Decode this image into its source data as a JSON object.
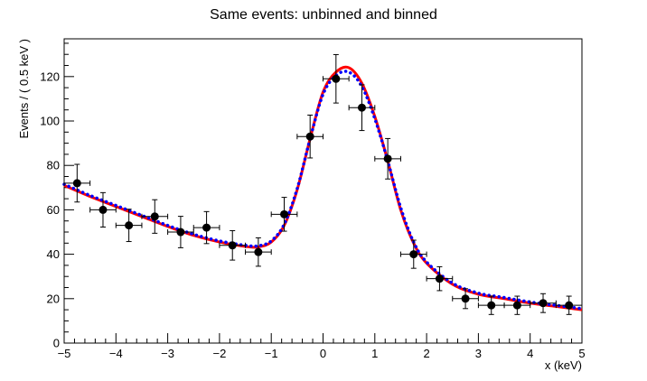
{
  "chart_data": {
    "type": "scatter",
    "title": "Same events: unbinned and binned",
    "xlabel": "x (keV)",
    "ylabel": "Events / ( 0.5 keV )",
    "xlim": [
      -5,
      5
    ],
    "ylim": [
      0,
      137
    ],
    "grid": false,
    "x_ticks": [
      -5,
      -4,
      -3,
      -2,
      -1,
      0,
      1,
      2,
      3,
      4,
      5
    ],
    "x_tick_labels": [
      "−5",
      "−4",
      "−3",
      "−2",
      "−1",
      "0",
      "1",
      "2",
      "3",
      "4",
      "5"
    ],
    "y_ticks": [
      0,
      20,
      40,
      60,
      80,
      100,
      120
    ],
    "y_tick_labels": [
      "0",
      "20",
      "40",
      "60",
      "80",
      "100",
      "120"
    ],
    "points": {
      "x": [
        -4.75,
        -4.25,
        -3.75,
        -3.25,
        -2.75,
        -2.25,
        -1.75,
        -1.25,
        -0.75,
        -0.25,
        0.25,
        0.75,
        1.25,
        1.75,
        2.25,
        2.75,
        3.25,
        3.75,
        4.25,
        4.75
      ],
      "y": [
        72,
        60,
        53,
        57,
        50,
        52,
        44,
        41,
        58,
        93,
        119,
        106,
        83,
        40,
        29,
        20,
        17,
        17,
        18,
        17
      ],
      "xerr": 0.25,
      "color": "#000000"
    },
    "series": [
      {
        "line_style": "solid",
        "color": "#ff0000",
        "x": [
          -5,
          -4.5,
          -4,
          -3.5,
          -3,
          -2.5,
          -2,
          -1.5,
          -1.25,
          -1,
          -0.75,
          -0.5,
          -0.25,
          0,
          0.25,
          0.5,
          0.75,
          1,
          1.25,
          1.5,
          1.75,
          2,
          2.5,
          3,
          3.5,
          4,
          4.5,
          5
        ],
        "y": [
          71,
          66,
          61.5,
          57,
          52.5,
          48.5,
          45.5,
          43.5,
          43.3,
          45.5,
          53,
          69,
          92,
          113,
          122,
          124,
          117,
          102,
          82,
          60,
          45,
          36,
          26.5,
          22,
          20,
          18,
          16.5,
          15
        ]
      },
      {
        "line_style": "dotted",
        "color": "#0000ff",
        "x": [
          -5,
          -4.5,
          -4,
          -3.5,
          -3,
          -2.5,
          -2,
          -1.5,
          -1.25,
          -1,
          -0.75,
          -0.5,
          -0.25,
          0,
          0.25,
          0.5,
          0.75,
          1,
          1.25,
          1.5,
          1.75,
          2,
          2.5,
          3,
          3.5,
          4,
          4.5,
          5
        ],
        "y": [
          71.5,
          66.5,
          62,
          57.5,
          53,
          49,
          46,
          44,
          43.8,
          46,
          53.5,
          69.5,
          92,
          112,
          120.5,
          122,
          115.5,
          101,
          82,
          61,
          45.5,
          36.5,
          27,
          22.5,
          20.5,
          18.5,
          17,
          15.5
        ]
      }
    ]
  }
}
